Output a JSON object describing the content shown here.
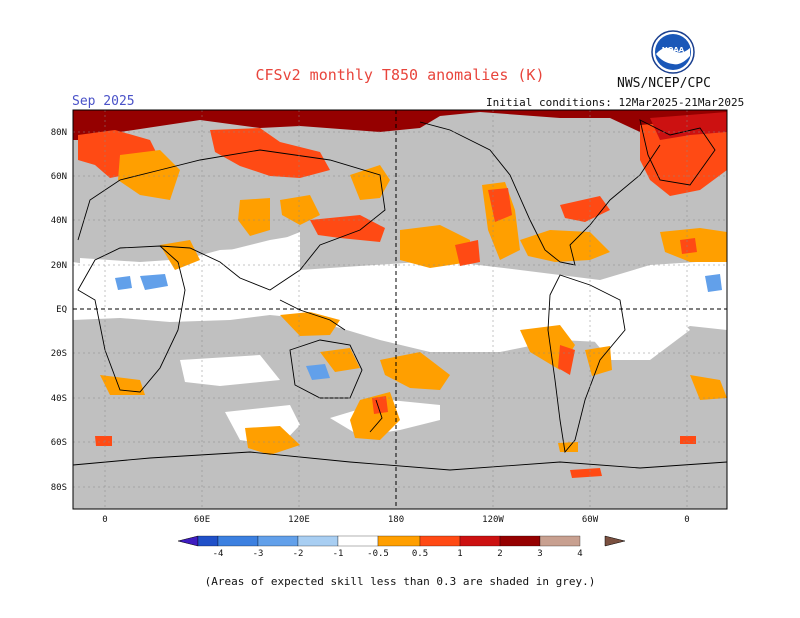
{
  "header": {
    "title": "CFSv2 monthly T850 anomalies (K)",
    "agency": "NWS/NCEP/CPC",
    "logo_text": "NOAA",
    "forecast_month": "Sep 2025",
    "initial_conditions": "Initial conditions: 12Mar2025-21Mar2025"
  },
  "map": {
    "lat_labels": [
      "80N",
      "60N",
      "40N",
      "20N",
      "EQ",
      "20S",
      "40S",
      "60S",
      "80S"
    ],
    "lon_labels": [
      "0",
      "60E",
      "120E",
      "180",
      "120W",
      "60W",
      "0"
    ],
    "colors": {
      "low_skill": "#c0c0c0",
      "neutral": "#ffffff",
      "coast": "#000000",
      "reference_line": "#000000"
    }
  },
  "colorbar": {
    "ticks": [
      "-4",
      "-3",
      "-2",
      "-1",
      "-0.5",
      "0.5",
      "1",
      "2",
      "3",
      "4"
    ],
    "colors": [
      "#3e1cc0",
      "#2050c8",
      "#3c80e0",
      "#62a0ea",
      "#a8cef2",
      "#ffffff",
      "#ff9f00",
      "#ff4a14",
      "#cc1111",
      "#950000",
      "#c8a090",
      "#7a5040"
    ]
  },
  "footnote": "(Areas of expected skill less than 0.3 are shaded in grey.)"
}
